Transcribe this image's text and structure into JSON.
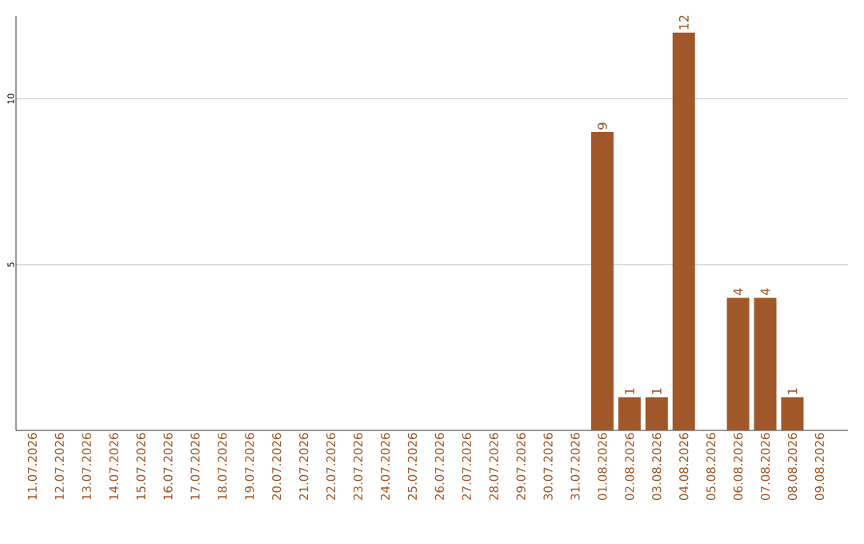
{
  "chart_data": {
    "type": "bar",
    "categories": [
      "11.07.2026",
      "12.07.2026",
      "13.07.2026",
      "14.07.2026",
      "15.07.2026",
      "16.07.2026",
      "17.07.2026",
      "18.07.2026",
      "19.07.2026",
      "20.07.2026",
      "21.07.2026",
      "22.07.2026",
      "23.07.2026",
      "24.07.2026",
      "25.07.2026",
      "26.07.2026",
      "27.07.2026",
      "28.07.2026",
      "29.07.2026",
      "30.07.2026",
      "31.07.2026",
      "01.08.2026",
      "02.08.2026",
      "03.08.2026",
      "04.08.2026",
      "05.08.2026",
      "06.08.2026",
      "07.08.2026",
      "08.08.2026",
      "09.08.2026"
    ],
    "values": [
      0,
      0,
      0,
      0,
      0,
      0,
      0,
      0,
      0,
      0,
      0,
      0,
      0,
      0,
      0,
      0,
      0,
      0,
      0,
      0,
      0,
      9,
      1,
      1,
      12,
      0,
      4,
      4,
      1,
      0
    ],
    "value_labels": [
      null,
      null,
      null,
      null,
      null,
      null,
      null,
      null,
      null,
      null,
      null,
      null,
      null,
      null,
      null,
      null,
      null,
      null,
      null,
      null,
      null,
      "9",
      "1",
      "1",
      "12",
      null,
      "4",
      "4",
      "1",
      null
    ],
    "color": "#a0582a",
    "ylim": [
      0,
      12.5
    ],
    "yticks": [
      5,
      10
    ],
    "grid": "y"
  }
}
